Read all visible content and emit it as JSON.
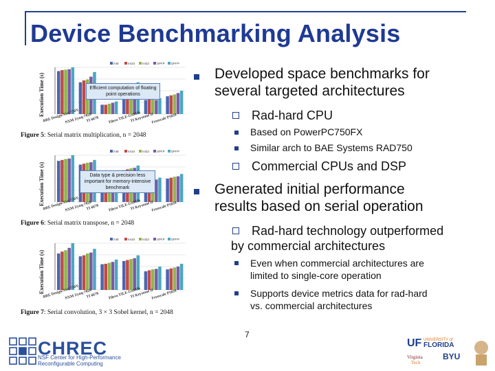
{
  "slide": {
    "title": "Device Benchmarking Analysis",
    "page_number": "7"
  },
  "bullets": [
    {
      "level": 1,
      "text_lines": [
        "Developed space benchmarks for",
        "several targeted architectures"
      ]
    },
    {
      "level": 2,
      "text_lines": [
        "Rad-hard CPU"
      ]
    },
    {
      "level": 3,
      "text_lines": [
        "Based on PowerPC750FX"
      ]
    },
    {
      "level": 3,
      "text_lines": [
        "Similar arch to BAE Systems RAD750"
      ]
    },
    {
      "level": 2,
      "text_lines": [
        "Commercial CPUs and DSP"
      ]
    },
    {
      "level": 1,
      "text_lines": [
        "Generated initial performance",
        "results based on serial operation"
      ]
    },
    {
      "level": 2,
      "text_lines": [
        "Rad-hard technology outperformed",
        "by commercial architectures"
      ]
    },
    {
      "level": 3,
      "text_lines": [
        "Even when commercial architectures are",
        "limited to single-core operation"
      ]
    },
    {
      "level": 3,
      "text_lines": [
        "Supports device metrics data for rad-hard",
        "vs. commercial architectures"
      ]
    }
  ],
  "figures": [
    {
      "caption_label": "Figure 5",
      "caption_text": ": Serial matrix multiplication, n = 2048",
      "ylabel": "Execution Time (s)",
      "callout": "Efficient computation of floating point operations",
      "x_labels": [
        "BRE Design/Xtal 750X",
        "NXM Zynq-7020",
        "TI 6678",
        "Tilera TILE-Gx8036",
        "TI Keystone II",
        "Freescale P5020"
      ],
      "legend": [
        "Int8",
        "Int16",
        "Int32",
        "SPFP",
        "DPFP"
      ]
    },
    {
      "caption_label": "Figure 6",
      "caption_text": ": Serial matrix transpose, n = 2048",
      "ylabel": "Execution Time (s)",
      "callout": "Data type & precision less important for memory-intensive benchmark",
      "x_labels": [
        "BRE Design/Xtal 750X",
        "NXM Zynq-7020",
        "TI 6678",
        "Tilera TILE-Gx8036",
        "TI Keystone II",
        "Freescale P5020"
      ],
      "legend": [
        "Int8",
        "Int16",
        "Int32",
        "SPFP",
        "DPFP"
      ]
    },
    {
      "caption_label": "Figure 7",
      "caption_text": ": Serial convolution, 3 × 3 Sobel kernel, n = 2048",
      "ylabel": "Execution Time (s)",
      "callout": "",
      "x_labels": [
        "BRE Design/Xtal 750X",
        "NXM Zynq-7020",
        "TI 6678",
        "Tilera TILE-Gx8036",
        "TI Keystone II",
        "Freescale P5020"
      ],
      "legend": [
        "Int8",
        "Int16",
        "Int32",
        "SPFP",
        "DPFP"
      ]
    }
  ],
  "chart_data": [
    {
      "type": "bar",
      "categories": [
        "BRE Design/Xtal 750X",
        "NXM Zynq-7020",
        "TI 6678",
        "Tilera TILE-Gx8036",
        "TI Keystone II",
        "Freescale P5020"
      ],
      "series": [
        {
          "name": "Int8",
          "values": [
            0.92,
            0.68,
            0.2,
            0.56,
            0.3,
            0.38
          ]
        },
        {
          "name": "Int16",
          "values": [
            0.94,
            0.72,
            0.2,
            0.57,
            0.31,
            0.4
          ]
        },
        {
          "name": "Int32",
          "values": [
            0.95,
            0.74,
            0.22,
            0.58,
            0.32,
            0.42
          ]
        },
        {
          "name": "SPFP",
          "values": [
            0.96,
            0.8,
            0.24,
            0.6,
            0.3,
            0.45
          ]
        },
        {
          "name": "DPFP",
          "values": [
            1.0,
            0.9,
            0.27,
            0.68,
            0.34,
            0.5
          ]
        }
      ],
      "ylim": [
        0,
        1
      ]
    },
    {
      "type": "bar",
      "categories": [
        "BRE Design/Xtal 750X",
        "NXM Zynq-7020",
        "TI 6678",
        "Tilera TILE-Gx8036",
        "TI Keystone II",
        "Freescale P5020"
      ],
      "series": [
        {
          "name": "Int8",
          "values": [
            0.88,
            0.8,
            0.55,
            0.68,
            0.45,
            0.5
          ]
        },
        {
          "name": "Int16",
          "values": [
            0.9,
            0.82,
            0.55,
            0.7,
            0.46,
            0.52
          ]
        },
        {
          "name": "Int32",
          "values": [
            0.92,
            0.84,
            0.58,
            0.72,
            0.48,
            0.54
          ]
        },
        {
          "name": "SPFP",
          "values": [
            0.93,
            0.85,
            0.58,
            0.73,
            0.48,
            0.55
          ]
        },
        {
          "name": "DPFP",
          "values": [
            1.0,
            0.9,
            0.62,
            0.78,
            0.52,
            0.6
          ]
        }
      ],
      "ylim": [
        0,
        1
      ]
    },
    {
      "type": "bar",
      "categories": [
        "BRE Design/Xtal 750X",
        "NXM Zynq-7020",
        "TI 6678",
        "Tilera TILE-Gx8036",
        "TI Keystone II",
        "Freescale P5020"
      ],
      "series": [
        {
          "name": "Int8",
          "values": [
            0.78,
            0.72,
            0.55,
            0.62,
            0.4,
            0.44
          ]
        },
        {
          "name": "Int16",
          "values": [
            0.82,
            0.74,
            0.56,
            0.64,
            0.42,
            0.46
          ]
        },
        {
          "name": "Int32",
          "values": [
            0.85,
            0.78,
            0.58,
            0.66,
            0.44,
            0.48
          ]
        },
        {
          "name": "SPFP",
          "values": [
            0.9,
            0.8,
            0.6,
            0.68,
            0.45,
            0.5
          ]
        },
        {
          "name": "DPFP",
          "values": [
            1.0,
            0.88,
            0.65,
            0.74,
            0.5,
            0.56
          ]
        }
      ],
      "ylim": [
        0,
        1
      ]
    }
  ],
  "colors": {
    "title": "#1f3a93",
    "bullet": "#1f3f8c",
    "series": [
      "#4a66b0",
      "#c04a47",
      "#8fb54a",
      "#7b5aa6",
      "#4aa8c2"
    ]
  },
  "footer": {
    "left_logo_text": "CHREC",
    "left_logo_sub_lines": [
      "NSF Center for High-Performance",
      "Reconfigurable Computing"
    ],
    "right_logos": [
      "UF UNIVERSITY of FLORIDA",
      "BYU",
      "Virginia Tech"
    ]
  }
}
